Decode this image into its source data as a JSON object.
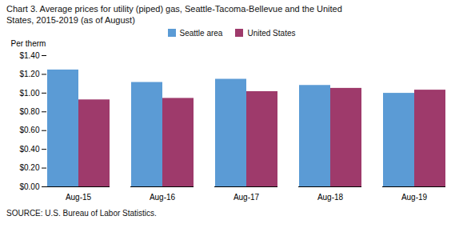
{
  "chart_data": {
    "type": "bar",
    "title": "Chart 3. Average prices for utility (piped) gas, Seattle-Tacoma-Bellevue and the United\nStates, 2015-2019  (as of August)",
    "ylabel": "Per therm",
    "caption": "SOURCE: U.S. Bureau of Labor Statistics.",
    "categories": [
      "Aug-15",
      "Aug-16",
      "Aug-17",
      "Aug-18",
      "Aug-19"
    ],
    "series": [
      {
        "name": "Seattle area",
        "color": "#5B9BD5",
        "values": [
          1.247,
          1.114,
          1.148,
          1.082,
          0.998
        ]
      },
      {
        "name": "United States",
        "color": "#9E3A6B",
        "values": [
          0.928,
          0.944,
          1.016,
          1.051,
          1.032
        ]
      }
    ],
    "ylim": [
      0,
      1.4
    ],
    "yticks": [
      {
        "value": 0.0,
        "label": "$0.00"
      },
      {
        "value": 0.2,
        "label": "$0.20"
      },
      {
        "value": 0.4,
        "label": "$0.40"
      },
      {
        "value": 0.6,
        "label": "$0.60"
      },
      {
        "value": 0.8,
        "label": "$0.80"
      },
      {
        "value": 1.0,
        "label": "$1.00"
      },
      {
        "value": 1.2,
        "label": "$1.20"
      },
      {
        "value": 1.4,
        "label": "$1.40"
      }
    ],
    "legend": "top",
    "grid": false
  }
}
